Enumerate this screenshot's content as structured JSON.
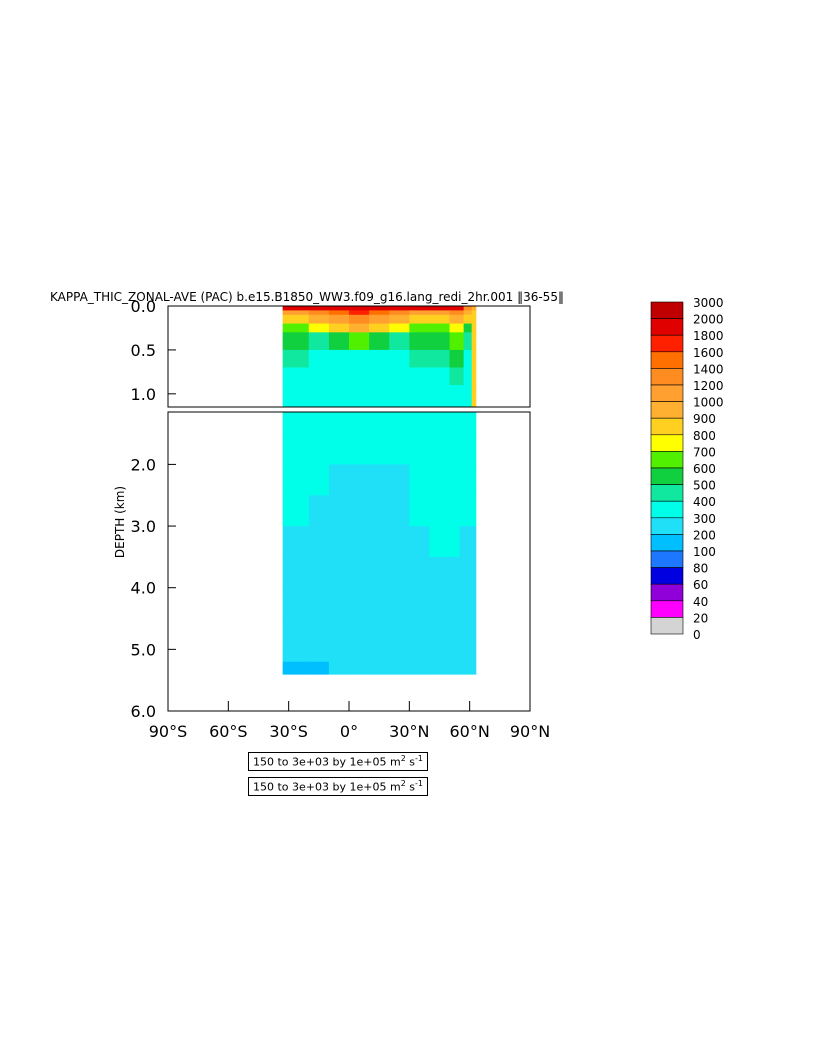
{
  "chart_data": {
    "type": "heatmap",
    "title": "KAPPA_THIC_ZONAL-AVE (PAC) b.e15.B1850_WW3.f09_g16.lang_redi_2hr.001 ‖36-55‖",
    "ylabel": "DEPTH (km)",
    "x_ticks": [
      "90°S",
      "60°S",
      "30°S",
      "0°",
      "30°N",
      "60°N",
      "90°N"
    ],
    "x_range": [
      -90,
      90
    ],
    "upper_panel": {
      "y_range": [
        0.0,
        1.15
      ],
      "y_ticks": [
        "0.0",
        "0.5",
        "1.0"
      ]
    },
    "lower_panel": {
      "y_range": [
        1.15,
        6.0
      ],
      "y_ticks": [
        "2.0",
        "3.0",
        "4.0",
        "5.0",
        "6.0"
      ]
    },
    "colorbar": {
      "levels": [
        "3000",
        "2000",
        "1800",
        "1600",
        "1400",
        "1200",
        "1000",
        "900",
        "800",
        "700",
        "600",
        "500",
        "400",
        "300",
        "200",
        "100",
        "80",
        "60",
        "40",
        "20",
        "0"
      ],
      "colors": [
        "#c00000",
        "#e00000",
        "#ff2000",
        "#ff7000",
        "#ff8c20",
        "#ffa030",
        "#ffb030",
        "#ffd020",
        "#ffff00",
        "#50f000",
        "#10d040",
        "#10e8a0",
        "#00ffe8",
        "#20e0f8",
        "#00bfff",
        "#1e78ff",
        "#0000e0",
        "#9000d8",
        "#ff00ff",
        "#d4d4d4",
        "#707070"
      ]
    },
    "data_extent": {
      "lat_min": -33,
      "lat_max": 63,
      "depth_max_km": 5.4
    },
    "upper_field": {
      "lat": [
        -33,
        -20,
        -10,
        0,
        10,
        20,
        30,
        40,
        50,
        57,
        61,
        63
      ],
      "depth_km": [
        0.0,
        0.05,
        0.1,
        0.2,
        0.3,
        0.5,
        0.7,
        0.9,
        1.15
      ],
      "kappa": [
        [
          2000,
          2000,
          2000,
          2000,
          2000,
          2000,
          2000,
          2000,
          2000,
          1400,
          1000,
          900
        ],
        [
          1200,
          1400,
          1600,
          1800,
          1600,
          1400,
          1200,
          1200,
          1400,
          1000,
          900,
          900
        ],
        [
          900,
          1000,
          1200,
          1400,
          1200,
          1000,
          900,
          900,
          1000,
          900,
          900,
          900
        ],
        [
          700,
          800,
          900,
          1000,
          900,
          800,
          700,
          700,
          800,
          600,
          900,
          900
        ],
        [
          600,
          500,
          600,
          700,
          600,
          500,
          600,
          600,
          700,
          500,
          900,
          900
        ],
        [
          500,
          400,
          400,
          400,
          400,
          400,
          500,
          500,
          600,
          400,
          900,
          900
        ],
        [
          400,
          400,
          400,
          400,
          400,
          400,
          400,
          400,
          500,
          400,
          900,
          900
        ],
        [
          400,
          400,
          400,
          400,
          400,
          400,
          400,
          400,
          400,
          400,
          900,
          900
        ],
        [
          400,
          400,
          400,
          400,
          400,
          400,
          400,
          400,
          400,
          400,
          900,
          900
        ]
      ]
    },
    "lower_field": {
      "lat": [
        -33,
        -20,
        -10,
        0,
        10,
        20,
        30,
        40,
        50,
        55,
        60,
        63
      ],
      "depth_km": [
        1.15,
        1.5,
        2.0,
        2.5,
        3.0,
        3.5,
        4.0,
        4.5,
        5.0,
        5.2,
        5.4
      ],
      "kappa": [
        [
          400,
          400,
          400,
          400,
          400,
          400,
          400,
          400,
          400,
          400,
          400,
          400
        ],
        [
          400,
          400,
          400,
          400,
          400,
          400,
          400,
          400,
          400,
          400,
          400,
          400
        ],
        [
          400,
          400,
          300,
          300,
          300,
          300,
          400,
          400,
          400,
          400,
          400,
          400
        ],
        [
          400,
          300,
          300,
          300,
          300,
          300,
          400,
          400,
          400,
          400,
          400,
          400
        ],
        [
          300,
          300,
          300,
          300,
          300,
          300,
          300,
          400,
          400,
          300,
          300,
          300
        ],
        [
          300,
          300,
          300,
          300,
          300,
          300,
          300,
          300,
          300,
          300,
          300,
          300
        ],
        [
          300,
          300,
          300,
          300,
          300,
          300,
          300,
          300,
          300,
          300,
          300,
          300
        ],
        [
          300,
          300,
          300,
          300,
          300,
          300,
          300,
          300,
          300,
          300,
          300,
          300
        ],
        [
          300,
          300,
          300,
          300,
          300,
          300,
          300,
          300,
          300,
          300,
          300,
          300
        ],
        [
          200,
          200,
          300,
          300,
          300,
          300,
          300,
          300,
          300,
          300,
          300,
          300
        ],
        [
          200,
          200,
          200,
          200,
          200,
          200,
          200,
          200,
          200,
          200,
          200,
          200
        ]
      ]
    }
  },
  "info_boxes": [
    {
      "text": "150 to 3e+03 by 1e+05 m",
      "sup": "2",
      "unit_tail": " s",
      "sup2": "-1"
    },
    {
      "text": "150 to 3e+03 by 1e+05 m",
      "sup": "2",
      "unit_tail": " s",
      "sup2": "-1"
    }
  ]
}
